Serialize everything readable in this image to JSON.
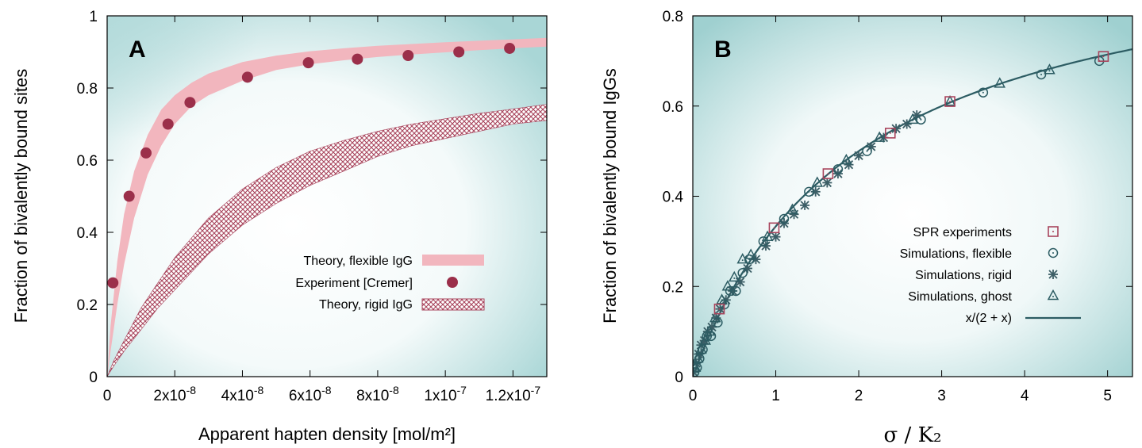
{
  "chart_data": [
    {
      "type": "line",
      "panel_label": "A",
      "xlabel": "Apparent hapten density [mol/m²]",
      "ylabel": "Fraction of bivalently bound sites",
      "xlim": [
        0,
        1.3e-07
      ],
      "ylim": [
        0,
        1
      ],
      "x_tick_labels": [
        "0",
        "2x10-8",
        "4x10-8",
        "6x10-8",
        "8x10-8",
        "1x10-7",
        "1.2x10-7"
      ],
      "x_tick_values": [
        0,
        2e-08,
        4e-08,
        6e-08,
        8e-08,
        1e-07,
        1.2e-07
      ],
      "y_tick_labels": [
        "0",
        "0.2",
        "0.4",
        "0.6",
        "0.8",
        "1"
      ],
      "y_tick_values": [
        0,
        0.2,
        0.4,
        0.6,
        0.8,
        1.0
      ],
      "legend": [
        "Theory, flexible IgG",
        "Experiment [Cremer]",
        "Theory, rigid IgG"
      ],
      "legend_position": "lower-right",
      "series": [
        {
          "name": "Theory, flexible IgG",
          "kind": "band",
          "color": "#f2b6be",
          "x": [
            0,
            1e-09,
            3e-09,
            5e-09,
            8e-09,
            1.2e-08,
            1.6e-08,
            2e-08,
            2.5e-08,
            3e-08,
            4e-08,
            5e-08,
            6e-08,
            7e-08,
            8e-08,
            9e-08,
            1e-07,
            1.1e-07,
            1.2e-07,
            1.3e-07
          ],
          "lower": [
            0,
            0.07,
            0.2,
            0.31,
            0.44,
            0.56,
            0.64,
            0.7,
            0.75,
            0.78,
            0.82,
            0.85,
            0.866,
            0.877,
            0.886,
            0.893,
            0.899,
            0.905,
            0.91,
            0.915
          ],
          "upper": [
            0,
            0.14,
            0.32,
            0.45,
            0.57,
            0.67,
            0.74,
            0.78,
            0.815,
            0.84,
            0.872,
            0.89,
            0.902,
            0.91,
            0.917,
            0.922,
            0.927,
            0.931,
            0.935,
            0.939
          ]
        },
        {
          "name": "Experiment [Cremer]",
          "kind": "scatter",
          "color": "#9b2f4a",
          "x": [
            1.7e-09,
            6.5e-09,
            1.15e-08,
            1.8e-08,
            2.45e-08,
            4.15e-08,
            5.95e-08,
            7.4e-08,
            8.9e-08,
            1.04e-07,
            1.19e-07
          ],
          "y": [
            0.26,
            0.5,
            0.62,
            0.7,
            0.76,
            0.83,
            0.87,
            0.88,
            0.89,
            0.9,
            0.91
          ]
        },
        {
          "name": "Theory, rigid IgG",
          "kind": "band",
          "color": "#a8445c",
          "x": [
            0,
            2e-09,
            5e-09,
            1e-08,
            1.5e-08,
            2e-08,
            3e-08,
            4e-08,
            5e-08,
            6e-08,
            7e-08,
            8e-08,
            9e-08,
            1e-07,
            1.1e-07,
            1.2e-07,
            1.3e-07
          ],
          "lower": [
            0,
            0.03,
            0.07,
            0.13,
            0.19,
            0.24,
            0.34,
            0.42,
            0.48,
            0.53,
            0.57,
            0.61,
            0.64,
            0.66,
            0.68,
            0.7,
            0.71
          ],
          "upper": [
            0,
            0.045,
            0.1,
            0.19,
            0.26,
            0.33,
            0.44,
            0.52,
            0.58,
            0.625,
            0.655,
            0.68,
            0.7,
            0.715,
            0.73,
            0.742,
            0.755
          ]
        }
      ]
    },
    {
      "type": "scatter",
      "panel_label": "B",
      "xlabel": "σ / K₂",
      "ylabel": "Fraction of bivalently bound IgGs",
      "xlim": [
        0,
        5.3
      ],
      "ylim": [
        0,
        0.8
      ],
      "x_tick_labels": [
        "0",
        "1",
        "2",
        "3",
        "4",
        "5"
      ],
      "x_tick_values": [
        0,
        1,
        2,
        3,
        4,
        5
      ],
      "y_tick_labels": [
        "0",
        "0.2",
        "0.4",
        "0.6",
        "0.8"
      ],
      "y_tick_values": [
        0,
        0.2,
        0.4,
        0.6,
        0.8
      ],
      "legend": [
        "SPR experiments",
        "Simulations, flexible",
        "Simulations, rigid",
        "Simulations, ghost",
        "x/(2 + x)"
      ],
      "legend_position": "lower-right",
      "series": [
        {
          "name": "SPR experiments",
          "marker": "square",
          "color": "#a8445c",
          "x": [
            0.32,
            0.98,
            1.63,
            2.38,
            3.1,
            4.95
          ],
          "y": [
            0.15,
            0.33,
            0.45,
            0.54,
            0.61,
            0.71
          ]
        },
        {
          "name": "Simulations, flexible",
          "marker": "circle",
          "color": "#2c5c63",
          "x": [
            0.02,
            0.05,
            0.08,
            0.12,
            0.17,
            0.22,
            0.3,
            0.38,
            0.45,
            0.52,
            0.6,
            0.68,
            0.85,
            1.1,
            1.4,
            1.75,
            2.1,
            2.75,
            3.5,
            4.2,
            4.9
          ],
          "y": [
            0.01,
            0.02,
            0.04,
            0.06,
            0.09,
            0.09,
            0.12,
            0.16,
            0.19,
            0.19,
            0.23,
            0.26,
            0.3,
            0.35,
            0.41,
            0.46,
            0.5,
            0.57,
            0.63,
            0.67,
            0.7
          ]
        },
        {
          "name": "Simulations, rigid",
          "marker": "star",
          "color": "#3c5e66",
          "x": [
            0.01,
            0.04,
            0.07,
            0.1,
            0.14,
            0.18,
            0.23,
            0.28,
            0.33,
            0.4,
            0.48,
            0.57,
            0.66,
            0.76,
            0.88,
            1.0,
            1.1,
            1.22,
            1.35,
            1.48,
            1.62,
            1.75,
            1.88,
            2.0,
            2.15,
            2.3,
            2.45,
            2.58,
            2.7
          ],
          "y": [
            0.01,
            0.03,
            0.05,
            0.07,
            0.08,
            0.1,
            0.11,
            0.13,
            0.15,
            0.17,
            0.19,
            0.21,
            0.24,
            0.26,
            0.29,
            0.31,
            0.34,
            0.36,
            0.38,
            0.41,
            0.43,
            0.45,
            0.47,
            0.49,
            0.51,
            0.53,
            0.55,
            0.56,
            0.58
          ]
        },
        {
          "name": "Simulations, ghost",
          "marker": "triangle",
          "color": "#2c5c63",
          "x": [
            0.03,
            0.06,
            0.1,
            0.15,
            0.2,
            0.27,
            0.35,
            0.42,
            0.5,
            0.6,
            0.7,
            0.9,
            1.2,
            1.5,
            1.85,
            2.25,
            2.65,
            3.1,
            3.7,
            4.3
          ],
          "y": [
            0.02,
            0.04,
            0.06,
            0.08,
            0.1,
            0.13,
            0.17,
            0.2,
            0.22,
            0.26,
            0.27,
            0.31,
            0.37,
            0.43,
            0.48,
            0.53,
            0.57,
            0.61,
            0.65,
            0.68
          ]
        },
        {
          "name": "x/(2 + x)",
          "kind": "curve",
          "color": "#2c5c63",
          "formula": "x/(2+x)"
        }
      ]
    }
  ]
}
